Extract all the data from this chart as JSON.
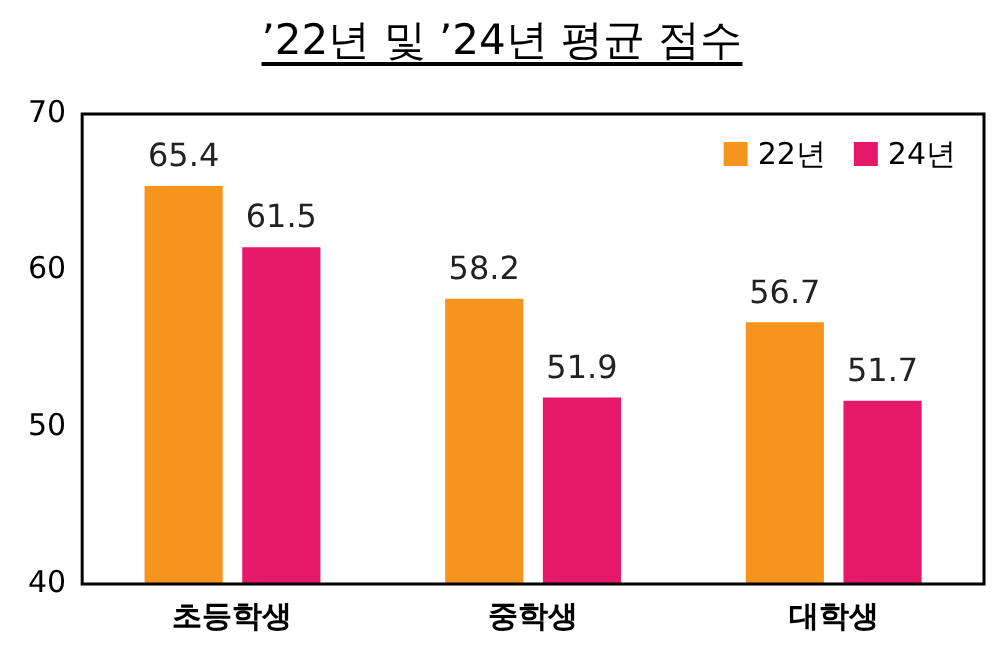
{
  "chart_data": {
    "type": "bar",
    "title": "’22년 및 ’24년 평균 점수",
    "categories": [
      "초등학생",
      "중학생",
      "대학생"
    ],
    "series": [
      {
        "name": "22년",
        "color": "#f7941d",
        "values": [
          65.4,
          58.2,
          56.7
        ]
      },
      {
        "name": "24년",
        "color": "#e6186a",
        "values": [
          61.5,
          51.9,
          51.7
        ]
      }
    ],
    "ylim": [
      40,
      70
    ],
    "yticks": [
      40,
      50,
      60,
      70
    ],
    "grid": false,
    "legend": "top right",
    "data_labels": true
  }
}
